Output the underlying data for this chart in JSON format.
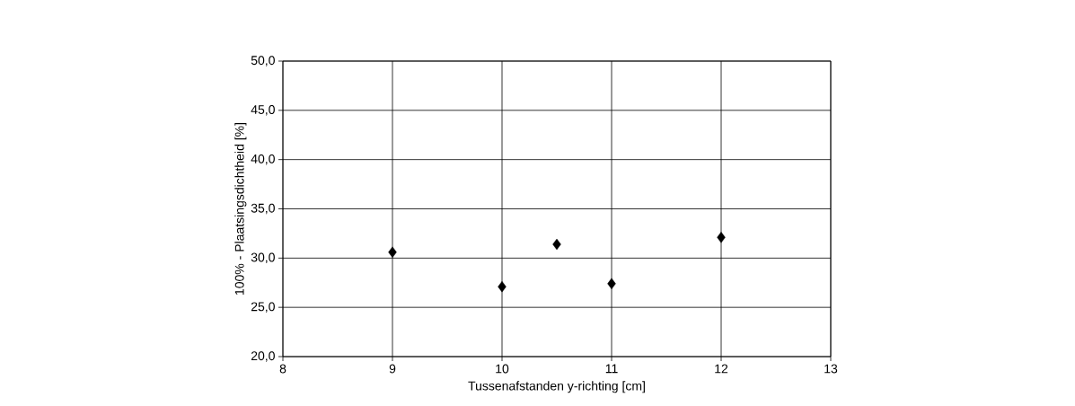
{
  "chart_data": {
    "type": "scatter",
    "xlabel": "Tussenafstanden y-richting [cm]",
    "ylabel": "100% - Plaatsingsdichtheid  [%]",
    "x": [
      9,
      10,
      10.5,
      11,
      12
    ],
    "values": [
      30.6,
      27.1,
      31.4,
      27.4,
      32.1
    ],
    "color": "#000000",
    "marker": "diamond",
    "grid": true,
    "xlim": [
      8,
      13
    ],
    "xticks": [
      8,
      9,
      10,
      11,
      12,
      13
    ],
    "ylim": [
      20,
      50
    ],
    "yticks": [
      {
        "value": 20,
        "label": "20,0"
      },
      {
        "value": 25,
        "label": "25,0"
      },
      {
        "value": 30,
        "label": "30,0"
      },
      {
        "value": 35,
        "label": "35,0"
      },
      {
        "value": 40,
        "label": "40,0"
      },
      {
        "value": 45,
        "label": "45,0"
      },
      {
        "value": 50,
        "label": "50,0"
      }
    ]
  }
}
